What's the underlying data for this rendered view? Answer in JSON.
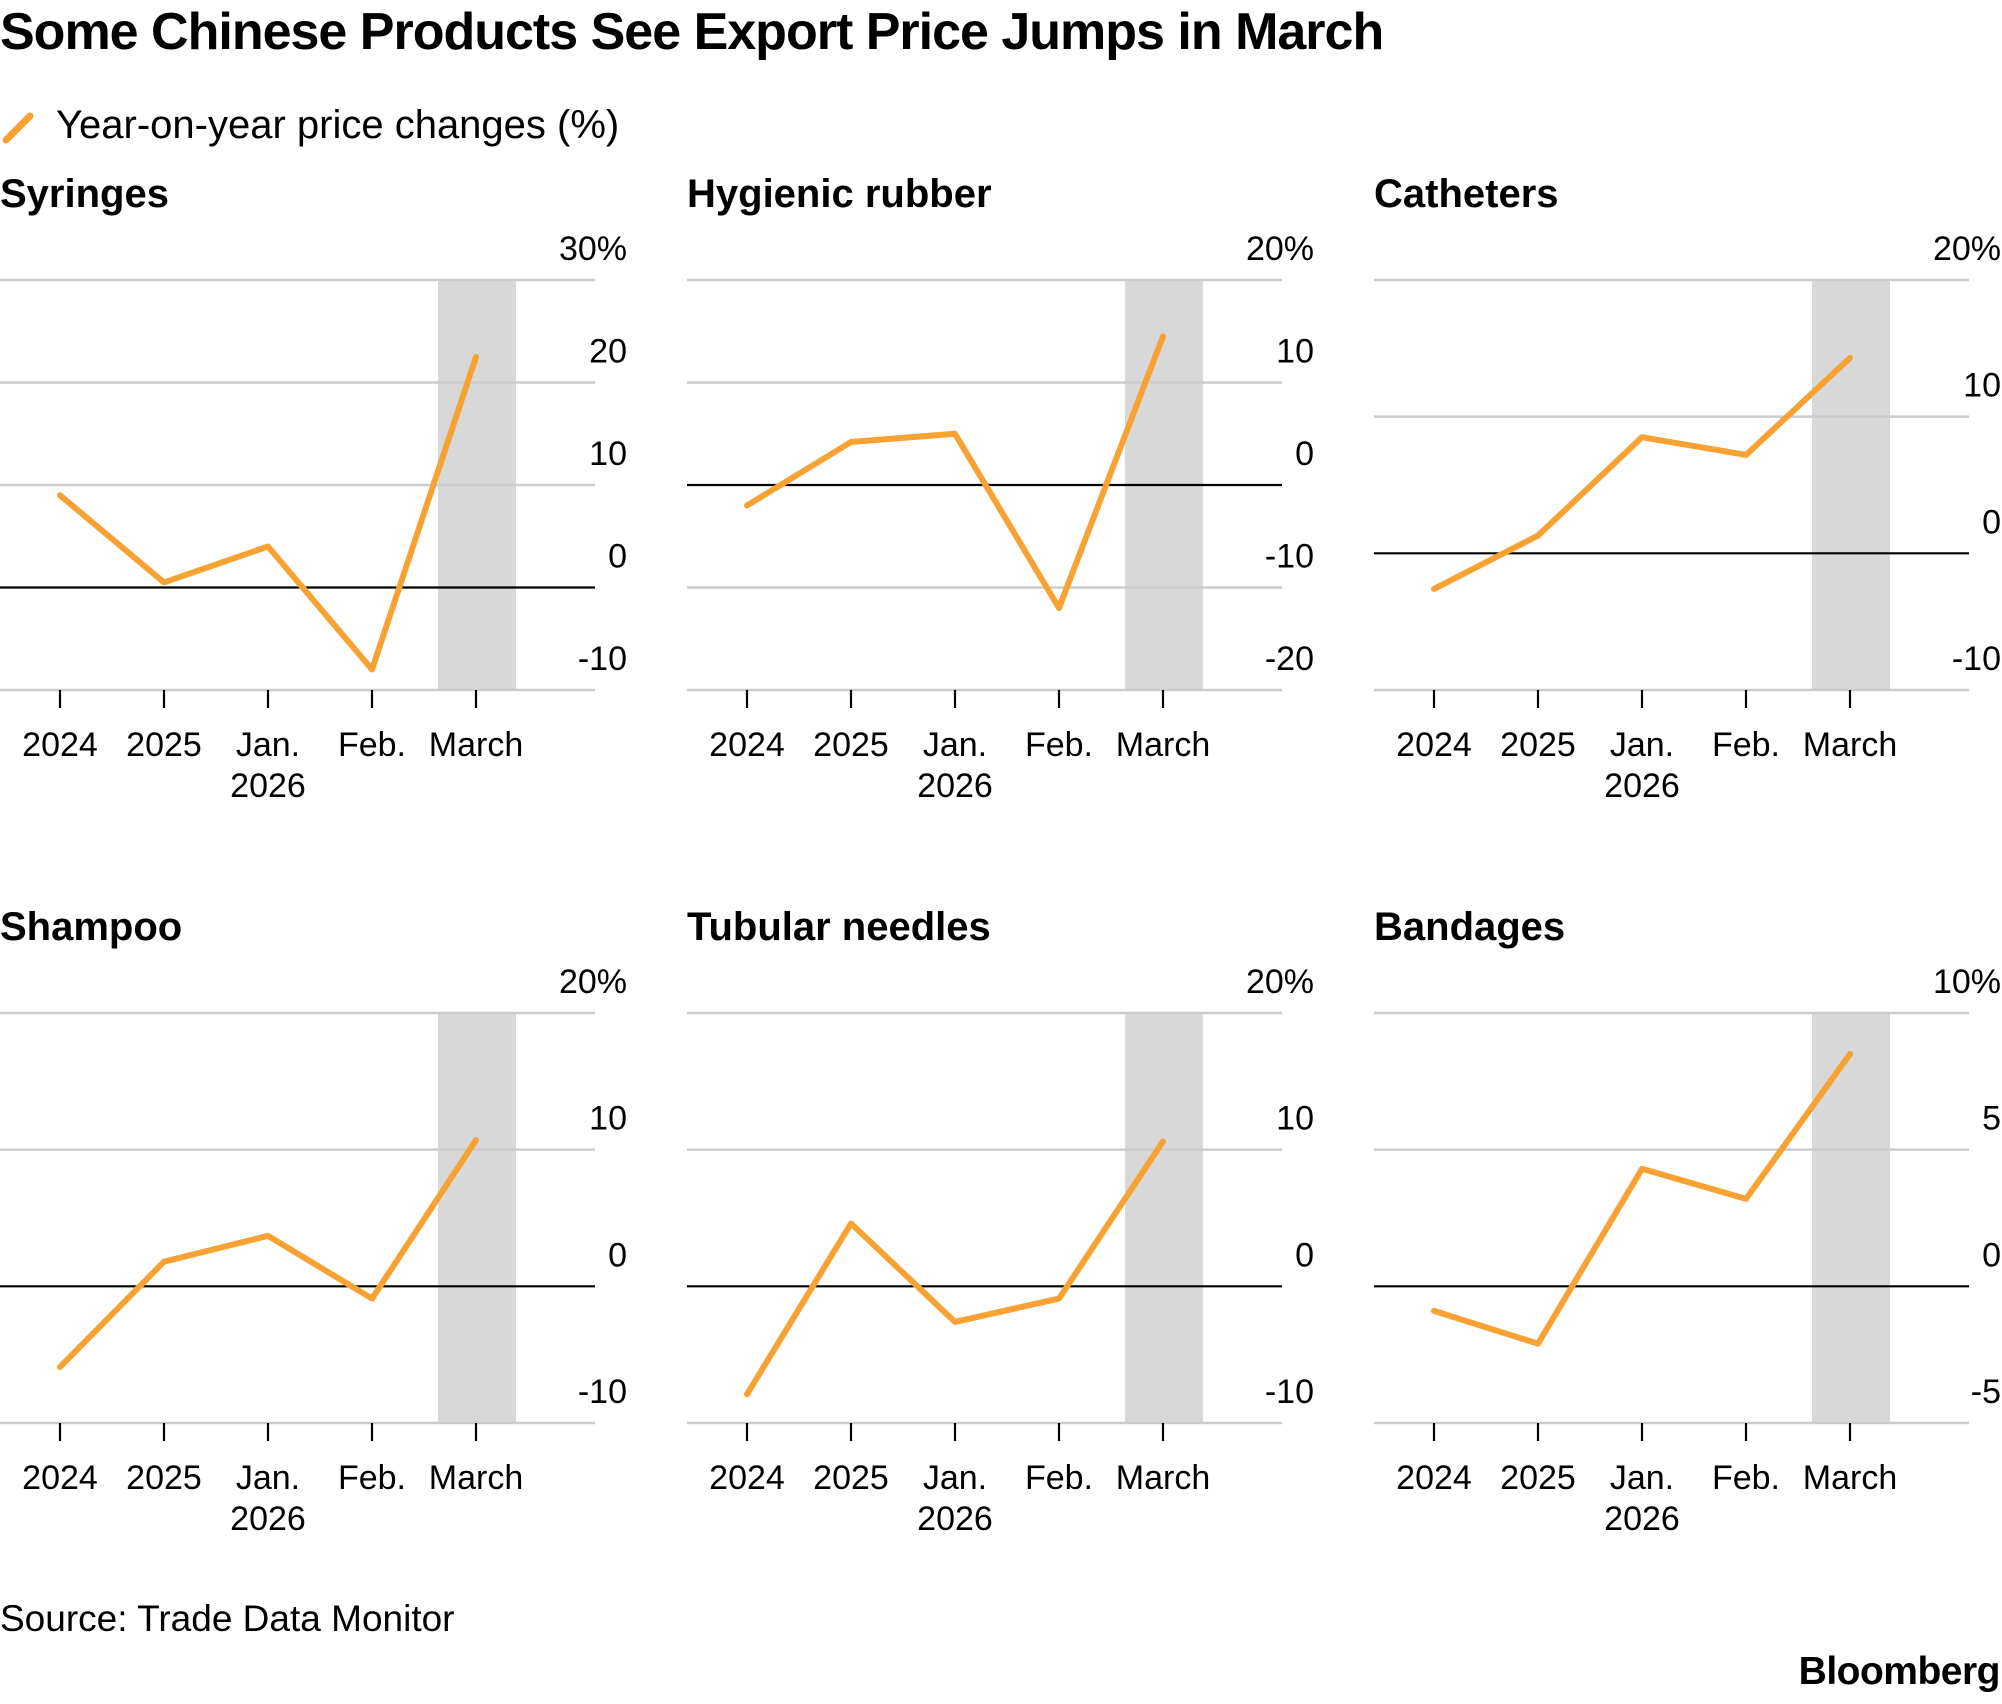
{
  "title": "Some Chinese Products See Export Price Jumps in March",
  "legend": {
    "label": "Year-on-year price changes (%)",
    "color": "#f7a232"
  },
  "source": "Source: Trade Data Monitor",
  "logo": "Bloomberg",
  "colors": {
    "line": "#f7a232",
    "highlight": "#d8d8d8",
    "grid": "#cccccc",
    "zero": "#000000"
  },
  "chart_data": [
    {
      "type": "line",
      "title": "Syringes",
      "categories": [
        "2024",
        "2025",
        "Jan.",
        "Feb.",
        "March"
      ],
      "category_sublabels": [
        "",
        "",
        "2026",
        "",
        ""
      ],
      "series": [
        {
          "name": "Year-on-year price changes (%)",
          "values": [
            9,
            0.5,
            4,
            -8,
            22.5
          ]
        }
      ],
      "ylim": [
        -10,
        30
      ],
      "yticks": [
        30,
        20,
        10,
        0,
        -10
      ],
      "ytick_labels": [
        "30%",
        "20",
        "10",
        "0",
        "-10"
      ],
      "highlight": "March"
    },
    {
      "type": "line",
      "title": "Hygienic rubber",
      "categories": [
        "2024",
        "2025",
        "Jan.",
        "Feb.",
        "March"
      ],
      "category_sublabels": [
        "",
        "",
        "2026",
        "",
        ""
      ],
      "series": [
        {
          "name": "Year-on-year price changes (%)",
          "values": [
            -2,
            4.2,
            5,
            -12,
            14.5
          ]
        }
      ],
      "ylim": [
        -20,
        20
      ],
      "yticks": [
        20,
        10,
        0,
        -10,
        -20
      ],
      "ytick_labels": [
        "20%",
        "10",
        "0",
        "-10",
        "-20"
      ],
      "highlight": "March"
    },
    {
      "type": "line",
      "title": "Catheters",
      "categories": [
        "2024",
        "2025",
        "Jan.",
        "Feb.",
        "March"
      ],
      "category_sublabels": [
        "",
        "",
        "2026",
        "",
        ""
      ],
      "series": [
        {
          "name": "Year-on-year price changes (%)",
          "values": [
            -2.6,
            1.3,
            8.5,
            7.2,
            14.3
          ]
        }
      ],
      "ylim": [
        -10,
        20
      ],
      "yticks": [
        20,
        10,
        0,
        -10
      ],
      "ytick_labels": [
        "20%",
        "10",
        "0",
        "-10"
      ],
      "highlight": "March"
    },
    {
      "type": "line",
      "title": "Shampoo",
      "categories": [
        "2024",
        "2025",
        "Jan.",
        "Feb.",
        "March"
      ],
      "category_sublabels": [
        "",
        "",
        "2026",
        "",
        ""
      ],
      "series": [
        {
          "name": "Year-on-year price changes (%)",
          "values": [
            -5.9,
            1.8,
            3.7,
            -0.9,
            10.7
          ]
        }
      ],
      "ylim": [
        -10,
        20
      ],
      "yticks": [
        20,
        10,
        0,
        -10
      ],
      "ytick_labels": [
        "20%",
        "10",
        "0",
        "-10"
      ],
      "highlight": "March"
    },
    {
      "type": "line",
      "title": "Tubular needles",
      "categories": [
        "2024",
        "2025",
        "Jan.",
        "Feb.",
        "March"
      ],
      "category_sublabels": [
        "",
        "",
        "2026",
        "",
        ""
      ],
      "series": [
        {
          "name": "Year-on-year price changes (%)",
          "values": [
            -7.9,
            4.6,
            -2.6,
            -0.9,
            10.6
          ]
        }
      ],
      "ylim": [
        -10,
        20
      ],
      "yticks": [
        20,
        10,
        0,
        -10
      ],
      "ytick_labels": [
        "20%",
        "10",
        "0",
        "-10"
      ],
      "highlight": "March"
    },
    {
      "type": "line",
      "title": "Bandages",
      "categories": [
        "2024",
        "2025",
        "Jan.",
        "Feb.",
        "March"
      ],
      "category_sublabels": [
        "",
        "",
        "2026",
        "",
        ""
      ],
      "series": [
        {
          "name": "Year-on-year price changes (%)",
          "values": [
            -0.9,
            -2.1,
            4.3,
            3.2,
            8.5
          ]
        }
      ],
      "ylim": [
        -5,
        10
      ],
      "yticks": [
        10,
        5,
        0,
        -5
      ],
      "ytick_labels": [
        "10%",
        "5",
        "0",
        "-5"
      ],
      "highlight": "March"
    }
  ]
}
